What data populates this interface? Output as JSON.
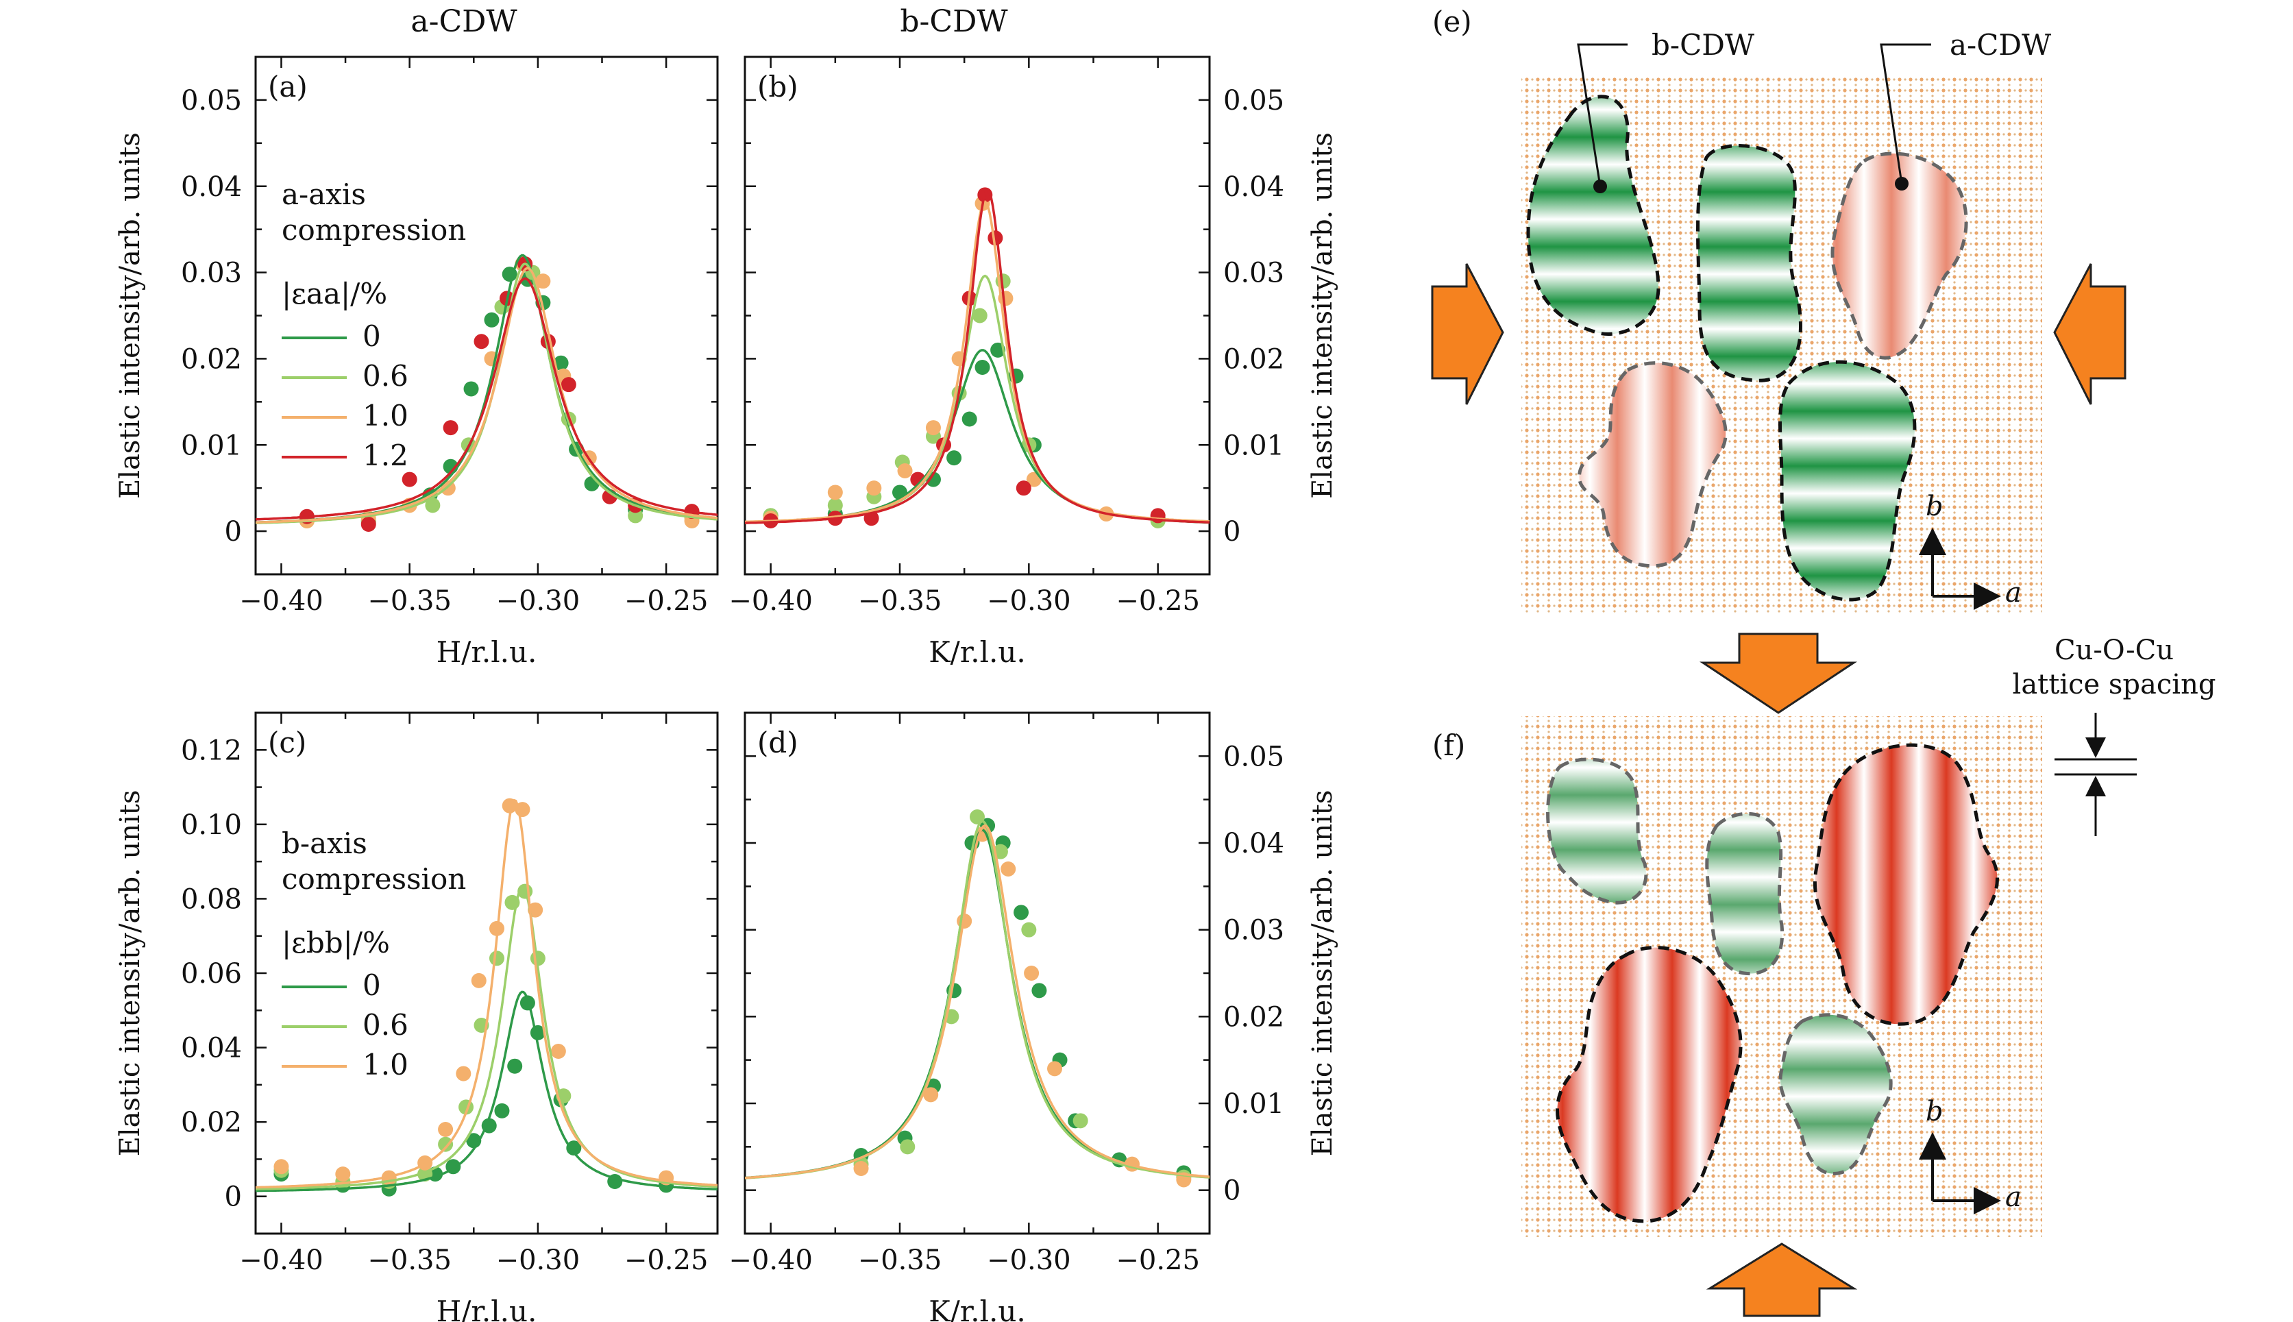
{
  "colors": {
    "green_dark": "#2e9a49",
    "green_light": "#9ccf6a",
    "orange_light": "#f4b06c",
    "red": "#d2232a",
    "arrow_orange": "#f5821f",
    "domain_green": "#2f9d4f",
    "domain_red": "#e0583e",
    "lattice_dot": "#e8a86a"
  },
  "column_titles": {
    "a": "a-CDW",
    "b": "b-CDW"
  },
  "diagram": {
    "panel_e_label": "(e)",
    "panel_f_label": "(f)",
    "label_bcdw": "b-CDW",
    "label_acdw": "a-CDW",
    "axis_b": "b",
    "axis_a": "a",
    "lattice_line1": "Cu-O-Cu",
    "lattice_line2": "lattice spacing"
  },
  "chart_data": [
    {
      "id": "a",
      "panel_label": "(a)",
      "type": "line",
      "xlabel": "H/r.l.u.",
      "ylabel": "Elastic intensity/arb. units",
      "xlim": [
        -0.41,
        -0.23
      ],
      "ylim": [
        -0.005,
        0.055
      ],
      "xticks": [
        "−0.40",
        "−0.35",
        "−0.30",
        "−0.25"
      ],
      "xtick_values": [
        -0.4,
        -0.35,
        -0.3,
        -0.25
      ],
      "yticks": [
        "0",
        "0.01",
        "0.02",
        "0.03",
        "0.04",
        "0.05"
      ],
      "ytick_values": [
        0,
        0.01,
        0.02,
        0.03,
        0.04,
        0.05
      ],
      "axis_side": "left",
      "annotation_lines": [
        "a-axis",
        "compression"
      ],
      "legend_title": "|εaa|/%",
      "legend_entries": [
        "0",
        "0.6",
        "1.0",
        "1.2"
      ],
      "series": [
        {
          "name": "0",
          "color": "#2e9a49",
          "fit": {
            "center": -0.306,
            "amp": 0.0315,
            "gamma": 0.0135,
            "base": 0.0005
          },
          "points": [
            [
              -0.39,
              0.0015
            ],
            [
              -0.366,
              0.0012
            ],
            [
              -0.342,
              0.0042
            ],
            [
              -0.334,
              0.0075
            ],
            [
              -0.326,
              0.0165
            ],
            [
              -0.318,
              0.0245
            ],
            [
              -0.311,
              0.0298
            ],
            [
              -0.304,
              0.0292
            ],
            [
              -0.298,
              0.0265
            ],
            [
              -0.291,
              0.0195
            ],
            [
              -0.285,
              0.0095
            ],
            [
              -0.279,
              0.0055
            ],
            [
              -0.262,
              0.0025
            ],
            [
              -0.24,
              0.0018
            ]
          ]
        },
        {
          "name": "0.6",
          "color": "#9ccf6a",
          "fit": {
            "center": -0.305,
            "amp": 0.0305,
            "gamma": 0.0128,
            "base": 0.0005
          },
          "points": [
            [
              -0.39,
              0.0012
            ],
            [
              -0.366,
              0.001
            ],
            [
              -0.341,
              0.003
            ],
            [
              -0.327,
              0.01
            ],
            [
              -0.314,
              0.026
            ],
            [
              -0.302,
              0.03
            ],
            [
              -0.288,
              0.013
            ],
            [
              -0.262,
              0.0018
            ],
            [
              -0.24,
              0.0016
            ]
          ]
        },
        {
          "name": "1.0",
          "color": "#f4b06c",
          "fit": {
            "center": -0.304,
            "amp": 0.03,
            "gamma": 0.014,
            "base": 0.0005
          },
          "points": [
            [
              -0.39,
              0.0012
            ],
            [
              -0.366,
              0.0015
            ],
            [
              -0.35,
              0.003
            ],
            [
              -0.335,
              0.005
            ],
            [
              -0.318,
              0.02
            ],
            [
              -0.306,
              0.031
            ],
            [
              -0.298,
              0.029
            ],
            [
              -0.29,
              0.018
            ],
            [
              -0.28,
              0.0085
            ],
            [
              -0.24,
              0.0012
            ]
          ]
        },
        {
          "name": "1.2",
          "color": "#d2232a",
          "fit": {
            "center": -0.305,
            "amp": 0.0285,
            "gamma": 0.015,
            "base": 0.0008
          },
          "points": [
            [
              -0.39,
              0.0017
            ],
            [
              -0.366,
              0.0008
            ],
            [
              -0.35,
              0.006
            ],
            [
              -0.334,
              0.012
            ],
            [
              -0.322,
              0.022
            ],
            [
              -0.312,
              0.027
            ],
            [
              -0.305,
              0.031
            ],
            [
              -0.296,
              0.022
            ],
            [
              -0.288,
              0.017
            ],
            [
              -0.272,
              0.004
            ],
            [
              -0.262,
              0.003
            ],
            [
              -0.24,
              0.0023
            ]
          ]
        }
      ]
    },
    {
      "id": "b",
      "panel_label": "(b)",
      "type": "line",
      "xlabel": "K/r.l.u.",
      "ylabel": "Elastic intensity/arb. units",
      "xlim": [
        -0.41,
        -0.23
      ],
      "ylim": [
        -0.005,
        0.055
      ],
      "xticks": [
        "−0.40",
        "−0.35",
        "−0.30",
        "−0.25"
      ],
      "xtick_values": [
        -0.4,
        -0.35,
        -0.3,
        -0.25
      ],
      "yticks": [
        "0",
        "0.01",
        "0.02",
        "0.03",
        "0.04",
        "0.05"
      ],
      "ytick_values": [
        0,
        0.01,
        0.02,
        0.03,
        0.04,
        0.05
      ],
      "axis_side": "right",
      "series": [
        {
          "name": "0",
          "color": "#2e9a49",
          "fit": {
            "center": -0.318,
            "amp": 0.0205,
            "gamma": 0.014,
            "base": 0.0005
          },
          "points": [
            [
              -0.4,
              0.0018
            ],
            [
              -0.375,
              0.002
            ],
            [
              -0.35,
              0.0045
            ],
            [
              -0.337,
              0.006
            ],
            [
              -0.329,
              0.0085
            ],
            [
              -0.323,
              0.013
            ],
            [
              -0.318,
              0.019
            ],
            [
              -0.312,
              0.021
            ],
            [
              -0.305,
              0.018
            ],
            [
              -0.298,
              0.01
            ],
            [
              -0.25,
              0.0015
            ]
          ]
        },
        {
          "name": "0.6",
          "color": "#9ccf6a",
          "fit": {
            "center": -0.317,
            "amp": 0.029,
            "gamma": 0.011,
            "base": 0.0006
          },
          "points": [
            [
              -0.4,
              0.0018
            ],
            [
              -0.375,
              0.003
            ],
            [
              -0.36,
              0.004
            ],
            [
              -0.349,
              0.008
            ],
            [
              -0.337,
              0.011
            ],
            [
              -0.327,
              0.016
            ],
            [
              -0.319,
              0.025
            ],
            [
              -0.31,
              0.029
            ],
            [
              -0.3,
              0.01
            ],
            [
              -0.25,
              0.0012
            ]
          ]
        },
        {
          "name": "1.0",
          "color": "#f4b06c",
          "fit": {
            "center": -0.317,
            "amp": 0.0375,
            "gamma": 0.0095,
            "base": 0.0007
          },
          "points": [
            [
              -0.4,
              0.0015
            ],
            [
              -0.375,
              0.0045
            ],
            [
              -0.36,
              0.005
            ],
            [
              -0.348,
              0.007
            ],
            [
              -0.337,
              0.012
            ],
            [
              -0.327,
              0.02
            ],
            [
              -0.318,
              0.038
            ],
            [
              -0.309,
              0.027
            ],
            [
              -0.298,
              0.006
            ],
            [
              -0.27,
              0.002
            ]
          ]
        },
        {
          "name": "1.2",
          "color": "#d2232a",
          "fit": {
            "center": -0.316,
            "amp": 0.039,
            "gamma": 0.009,
            "base": 0.0006
          },
          "points": [
            [
              -0.4,
              0.0012
            ],
            [
              -0.375,
              0.0015
            ],
            [
              -0.361,
              0.0015
            ],
            [
              -0.343,
              0.006
            ],
            [
              -0.333,
              0.01
            ],
            [
              -0.323,
              0.027
            ],
            [
              -0.317,
              0.039
            ],
            [
              -0.313,
              0.034
            ],
            [
              -0.302,
              0.005
            ],
            [
              -0.25,
              0.0018
            ]
          ]
        }
      ]
    },
    {
      "id": "c",
      "panel_label": "(c)",
      "type": "line",
      "xlabel": "H/r.l.u.",
      "ylabel": "Elastic intensity/arb. units",
      "xlim": [
        -0.41,
        -0.23
      ],
      "ylim": [
        -0.01,
        0.13
      ],
      "xticks": [
        "−0.40",
        "−0.35",
        "−0.30",
        "−0.25"
      ],
      "xtick_values": [
        -0.4,
        -0.35,
        -0.3,
        -0.25
      ],
      "yticks": [
        "0",
        "0.02",
        "0.04",
        "0.06",
        "0.08",
        "0.10",
        "0.12"
      ],
      "ytick_values": [
        0,
        0.02,
        0.04,
        0.06,
        0.08,
        0.1,
        0.12
      ],
      "axis_side": "left",
      "annotation_lines": [
        "b-axis",
        "compression"
      ],
      "legend_title": "|εbb|/%",
      "legend_entries": [
        "0",
        "0.6",
        "1.0"
      ],
      "series": [
        {
          "name": "0",
          "color": "#2e9a49",
          "fit": {
            "center": -0.306,
            "amp": 0.054,
            "gamma": 0.01,
            "base": 0.001
          },
          "points": [
            [
              -0.4,
              0.006
            ],
            [
              -0.376,
              0.003
            ],
            [
              -0.358,
              0.002
            ],
            [
              -0.34,
              0.006
            ],
            [
              -0.333,
              0.008
            ],
            [
              -0.325,
              0.015
            ],
            [
              -0.319,
              0.019
            ],
            [
              -0.314,
              0.023
            ],
            [
              -0.309,
              0.035
            ],
            [
              -0.304,
              0.052
            ],
            [
              -0.3,
              0.044
            ],
            [
              -0.291,
              0.026
            ],
            [
              -0.286,
              0.013
            ],
            [
              -0.27,
              0.004
            ],
            [
              -0.25,
              0.003
            ]
          ]
        },
        {
          "name": "0.6",
          "color": "#9ccf6a",
          "fit": {
            "center": -0.306,
            "amp": 0.082,
            "gamma": 0.01,
            "base": 0.0012
          },
          "points": [
            [
              -0.4,
              0.007
            ],
            [
              -0.376,
              0.004
            ],
            [
              -0.358,
              0.004
            ],
            [
              -0.344,
              0.006
            ],
            [
              -0.336,
              0.014
            ],
            [
              -0.328,
              0.024
            ],
            [
              -0.322,
              0.046
            ],
            [
              -0.316,
              0.064
            ],
            [
              -0.31,
              0.079
            ],
            [
              -0.305,
              0.082
            ],
            [
              -0.3,
              0.064
            ],
            [
              -0.29,
              0.027
            ]
          ]
        },
        {
          "name": "1.0",
          "color": "#f4b06c",
          "fit": {
            "center": -0.309,
            "amp": 0.105,
            "gamma": 0.0095,
            "base": 0.0015
          },
          "points": [
            [
              -0.4,
              0.008
            ],
            [
              -0.376,
              0.006
            ],
            [
              -0.358,
              0.005
            ],
            [
              -0.344,
              0.009
            ],
            [
              -0.336,
              0.018
            ],
            [
              -0.329,
              0.033
            ],
            [
              -0.323,
              0.058
            ],
            [
              -0.316,
              0.072
            ],
            [
              -0.311,
              0.105
            ],
            [
              -0.306,
              0.104
            ],
            [
              -0.301,
              0.077
            ],
            [
              -0.292,
              0.039
            ],
            [
              -0.25,
              0.005
            ]
          ]
        }
      ]
    },
    {
      "id": "d",
      "panel_label": "(d)",
      "type": "line",
      "xlabel": "K/r.l.u.",
      "ylabel": "Elastic intensity/arb. units",
      "xlim": [
        -0.41,
        -0.23
      ],
      "ylim": [
        -0.005,
        0.055
      ],
      "xticks": [
        "−0.40",
        "−0.35",
        "−0.30",
        "−0.25"
      ],
      "xtick_values": [
        -0.4,
        -0.35,
        -0.3,
        -0.25
      ],
      "yticks": [
        "0",
        "0.01",
        "0.02",
        "0.03",
        "0.04",
        "0.05"
      ],
      "ytick_values": [
        0,
        0.01,
        0.02,
        0.03,
        0.04,
        0.05
      ],
      "axis_side": "right",
      "series": [
        {
          "name": "0",
          "color": "#2e9a49",
          "fit": {
            "center": -0.318,
            "amp": 0.041,
            "gamma": 0.014,
            "base": 0.0005
          },
          "points": [
            [
              -0.365,
              0.004
            ],
            [
              -0.348,
              0.006
            ],
            [
              -0.337,
              0.012
            ],
            [
              -0.329,
              0.023
            ],
            [
              -0.322,
              0.04
            ],
            [
              -0.316,
              0.042
            ],
            [
              -0.31,
              0.04
            ],
            [
              -0.303,
              0.032
            ],
            [
              -0.296,
              0.023
            ],
            [
              -0.288,
              0.015
            ],
            [
              -0.282,
              0.008
            ],
            [
              -0.265,
              0.0035
            ],
            [
              -0.24,
              0.002
            ]
          ]
        },
        {
          "name": "0.6",
          "color": "#9ccf6a",
          "fit": {
            "center": -0.318,
            "amp": 0.042,
            "gamma": 0.0135,
            "base": 0.0005
          },
          "points": [
            [
              -0.365,
              0.003
            ],
            [
              -0.347,
              0.005
            ],
            [
              -0.33,
              0.02
            ],
            [
              -0.32,
              0.043
            ],
            [
              -0.311,
              0.039
            ],
            [
              -0.3,
              0.03
            ],
            [
              -0.28,
              0.008
            ],
            [
              -0.24,
              0.0015
            ]
          ]
        },
        {
          "name": "1.0",
          "color": "#f4b06c",
          "fit": {
            "center": -0.317,
            "amp": 0.0415,
            "gamma": 0.014,
            "base": 0.0005
          },
          "points": [
            [
              -0.365,
              0.0025
            ],
            [
              -0.338,
              0.011
            ],
            [
              -0.325,
              0.031
            ],
            [
              -0.318,
              0.041
            ],
            [
              -0.308,
              0.037
            ],
            [
              -0.299,
              0.025
            ],
            [
              -0.29,
              0.014
            ],
            [
              -0.26,
              0.003
            ],
            [
              -0.24,
              0.0012
            ]
          ]
        }
      ]
    }
  ]
}
